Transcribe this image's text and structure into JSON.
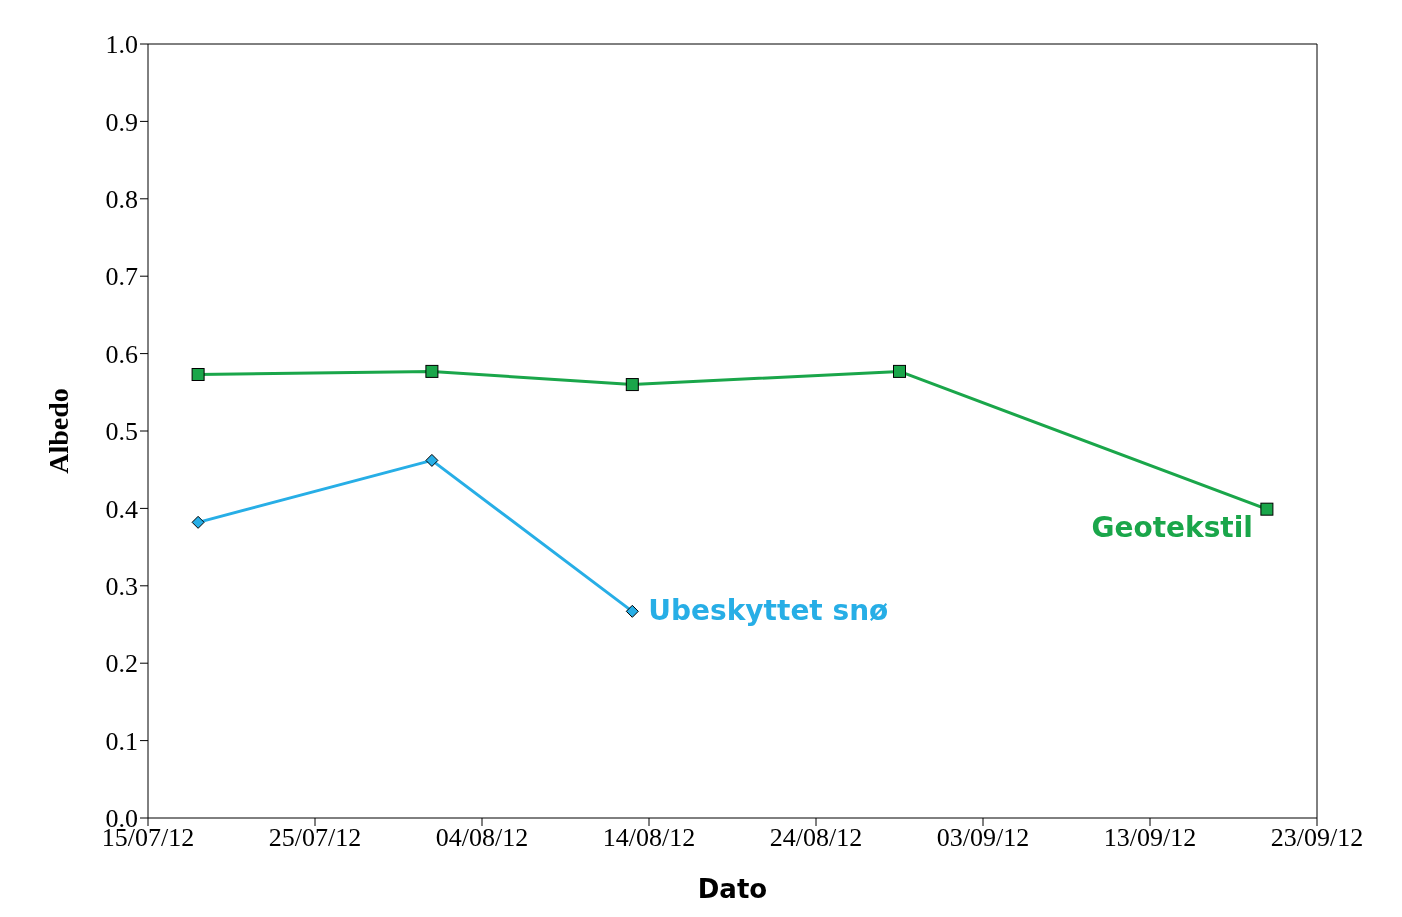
{
  "chart_data": {
    "type": "line",
    "xlabel": "Dato",
    "ylabel": "Albedo",
    "xlim": [
      "--07-15",
      "--09-23"
    ],
    "xticks": [
      {
        "value": "--07-15",
        "label": "15/07/12"
      },
      {
        "value": "--07-25",
        "label": "25/07/12"
      },
      {
        "value": "--08-04",
        "label": "04/08/12"
      },
      {
        "value": "--08-14",
        "label": "14/08/12"
      },
      {
        "value": "--08-24",
        "label": "24/08/12"
      },
      {
        "value": "--09-03",
        "label": "03/09/12"
      },
      {
        "value": "--09-13",
        "label": "13/09/12"
      },
      {
        "value": "--09-23",
        "label": "23/09/12"
      }
    ],
    "ylim": [
      0,
      1
    ],
    "yticks": [
      {
        "value": 0,
        "label": "0.0"
      },
      {
        "value": 0.1,
        "label": "0.1"
      },
      {
        "value": 0.2,
        "label": "0.2"
      },
      {
        "value": 0.3,
        "label": "0.3"
      },
      {
        "value": 0.4,
        "label": "0.4"
      },
      {
        "value": 0.5,
        "label": "0.5"
      },
      {
        "value": 0.6,
        "label": "0.6"
      },
      {
        "value": 0.7,
        "label": "0.7"
      },
      {
        "value": 0.8,
        "label": "0.8"
      },
      {
        "value": 0.9,
        "label": "0.9"
      },
      {
        "value": 1,
        "label": "1.0"
      }
    ],
    "line_style": "solid",
    "series": [
      {
        "name": "Geotekstil",
        "color": "#1aa64a",
        "marker": "square",
        "x": [
          "--07-18",
          "--08-01",
          "--08-13",
          "--08-29",
          "--09-20"
        ],
        "values": [
          0.573,
          0.577,
          0.56,
          0.577,
          0.399
        ]
      },
      {
        "name": "Ubeskyttet snø",
        "color": "#27aee6",
        "marker": "diamond",
        "x": [
          "--07-18",
          "--08-01",
          "--08-13"
        ],
        "values": [
          0.382,
          0.462,
          0.267
        ]
      }
    ]
  }
}
